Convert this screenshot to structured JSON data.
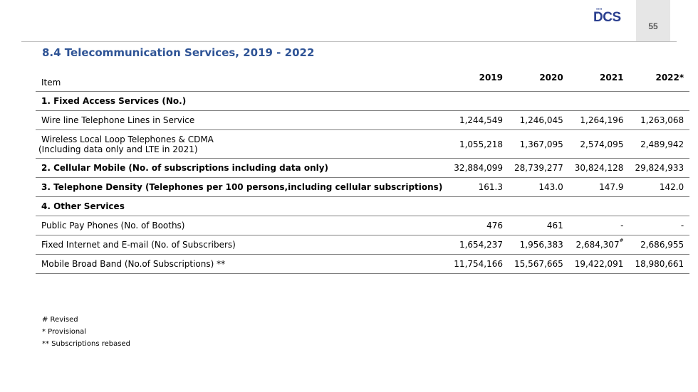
{
  "page_number": "55",
  "logo": {
    "text": "DCS"
  },
  "title": "8.4 Telecommunication Services, 2019 - 2022",
  "table": {
    "item_header": "Item",
    "year_headers": [
      "2019",
      "2020",
      "2021",
      "2022*"
    ],
    "rows": [
      {
        "label": "1. Fixed  Access Services (No.)",
        "values": [
          "",
          "",
          "",
          ""
        ]
      },
      {
        "label": "Wire line Telephone Lines in Service",
        "values": [
          "1,244,549",
          "1,246,045",
          "1,264,196",
          "1,263,068"
        ]
      },
      {
        "label": "Wireless Local Loop Telephones & CDMA",
        "label2": "(Including data only and LTE in 2021)",
        "values": [
          "1,055,218",
          "1,367,095",
          "2,574,095",
          "2,489,942"
        ]
      },
      {
        "label": "2. Cellular Mobile  (No. of subscriptions including data only)",
        "values": [
          "32,884,099",
          "28,739,277",
          "30,824,128",
          "29,824,933"
        ]
      },
      {
        "label": "3. Telephone  Density (Telephones per 100 persons,including cellular subscriptions)",
        "values": [
          "161.3",
          "143.0",
          "147.9",
          "142.0"
        ]
      },
      {
        "label": "4. Other Services",
        "values": [
          "",
          "",
          "",
          ""
        ]
      },
      {
        "label": "Public Pay Phones (No. of Booths)",
        "values": [
          "476",
          "461",
          "-",
          "-"
        ]
      },
      {
        "label": "Fixed  Internet and E-mail (No. of Subscribers)",
        "values": [
          "1,654,237",
          "1,956,383",
          "2,684,307",
          "2,686,955"
        ],
        "mark_2021": "#"
      },
      {
        "label": "Mobile Broad Band (No.of Subscriptions) **",
        "values": [
          "11,754,166",
          "15,567,665",
          "19,422,091",
          "18,980,661"
        ]
      }
    ]
  },
  "notes": [
    "# Revised",
    "* Provisional",
    "** Subscriptions rebased"
  ]
}
